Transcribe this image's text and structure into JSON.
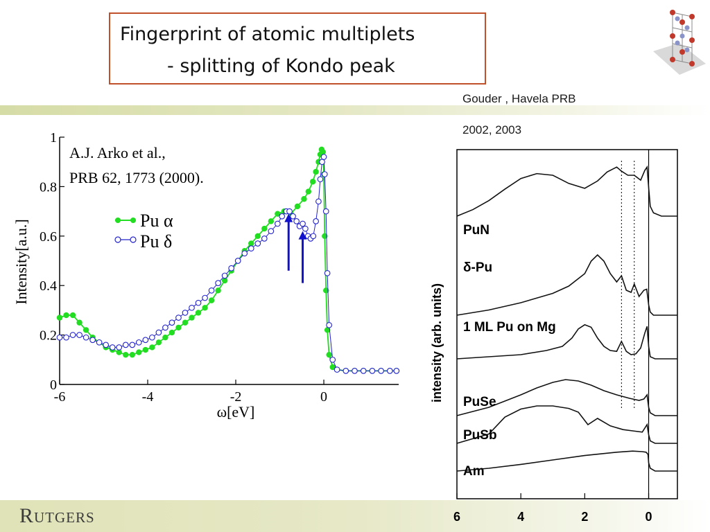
{
  "title": {
    "line1": "Fingerprint of atomic multiplets",
    "line2": "- splitting of Kondo peak"
  },
  "reference": {
    "line1": "Gouder , Havela PRB",
    "line2": "2002, 2003"
  },
  "footer": {
    "logo": "Rutgers"
  },
  "colors": {
    "title_border": "#c0502a",
    "pu_alpha": "#22dd22",
    "pu_delta": "#2222cc",
    "arrows": "#1111cc"
  },
  "chart_data": [
    {
      "type": "scatter",
      "xlabel": "ω[eV]",
      "ylabel": "Intensity[a.u.]",
      "xlim": [
        -6,
        1.7
      ],
      "ylim": [
        0,
        1
      ],
      "xticks": [
        "-6",
        "-4",
        "-2",
        "0"
      ],
      "yticks": [
        "0",
        "0.2",
        "0.4",
        "0.6",
        "0.8",
        "1"
      ],
      "annotation": [
        "A.J. Arko et al.,",
        "PRB 62, 1773 (2000)."
      ],
      "legend": {
        "alpha_label": "Pu α",
        "delta_label": "Pu δ",
        "position": "left"
      },
      "arrows": [
        {
          "x": -0.8,
          "y_tail": 0.46,
          "y_head": 0.69
        },
        {
          "x": -0.48,
          "y_tail": 0.41,
          "y_head": 0.62
        }
      ],
      "series": [
        {
          "name": "Pu α",
          "marker": "filled-circle",
          "x": [
            -6.0,
            -5.85,
            -5.7,
            -5.55,
            -5.4,
            -5.25,
            -5.1,
            -4.95,
            -4.8,
            -4.65,
            -4.5,
            -4.35,
            -4.2,
            -4.05,
            -3.9,
            -3.75,
            -3.6,
            -3.45,
            -3.3,
            -3.15,
            -3.0,
            -2.85,
            -2.7,
            -2.55,
            -2.4,
            -2.25,
            -2.1,
            -1.95,
            -1.8,
            -1.65,
            -1.5,
            -1.35,
            -1.2,
            -1.05,
            -0.9,
            -0.75,
            -0.6,
            -0.45,
            -0.35,
            -0.25,
            -0.18,
            -0.12,
            -0.08,
            -0.05,
            -0.02,
            0.0,
            0.02,
            0.05,
            0.08,
            0.12,
            0.2,
            0.3,
            0.5,
            0.7,
            0.9,
            1.1,
            1.3,
            1.5,
            1.65
          ],
          "y": [
            0.27,
            0.28,
            0.28,
            0.25,
            0.22,
            0.19,
            0.17,
            0.15,
            0.14,
            0.13,
            0.12,
            0.12,
            0.13,
            0.14,
            0.15,
            0.17,
            0.19,
            0.21,
            0.23,
            0.25,
            0.27,
            0.29,
            0.31,
            0.34,
            0.38,
            0.42,
            0.46,
            0.5,
            0.54,
            0.57,
            0.6,
            0.63,
            0.66,
            0.69,
            0.7,
            0.69,
            0.72,
            0.75,
            0.78,
            0.82,
            0.86,
            0.9,
            0.93,
            0.95,
            0.94,
            0.85,
            0.6,
            0.38,
            0.22,
            0.12,
            0.07,
            0.06,
            0.055,
            0.055,
            0.055,
            0.055,
            0.055,
            0.055,
            0.055
          ]
        },
        {
          "name": "Pu δ",
          "marker": "open-circle",
          "x": [
            -6.0,
            -5.85,
            -5.7,
            -5.55,
            -5.4,
            -5.25,
            -5.1,
            -4.95,
            -4.8,
            -4.65,
            -4.5,
            -4.35,
            -4.2,
            -4.05,
            -3.9,
            -3.75,
            -3.6,
            -3.45,
            -3.3,
            -3.15,
            -3.0,
            -2.85,
            -2.7,
            -2.55,
            -2.4,
            -2.25,
            -2.1,
            -1.95,
            -1.8,
            -1.65,
            -1.5,
            -1.35,
            -1.2,
            -1.05,
            -0.95,
            -0.85,
            -0.78,
            -0.7,
            -0.62,
            -0.55,
            -0.48,
            -0.42,
            -0.36,
            -0.3,
            -0.24,
            -0.18,
            -0.12,
            -0.08,
            -0.04,
            0.0,
            0.02,
            0.05,
            0.08,
            0.12,
            0.2,
            0.3,
            0.5,
            0.7,
            0.9,
            1.1,
            1.3,
            1.5,
            1.65
          ],
          "y": [
            0.19,
            0.19,
            0.2,
            0.2,
            0.19,
            0.18,
            0.17,
            0.16,
            0.15,
            0.15,
            0.16,
            0.16,
            0.17,
            0.18,
            0.19,
            0.21,
            0.23,
            0.25,
            0.27,
            0.29,
            0.31,
            0.33,
            0.35,
            0.38,
            0.41,
            0.44,
            0.47,
            0.5,
            0.53,
            0.55,
            0.57,
            0.59,
            0.62,
            0.65,
            0.68,
            0.7,
            0.7,
            0.68,
            0.66,
            0.64,
            0.65,
            0.63,
            0.6,
            0.59,
            0.6,
            0.66,
            0.74,
            0.83,
            0.9,
            0.92,
            0.85,
            0.7,
            0.45,
            0.24,
            0.1,
            0.06,
            0.055,
            0.055,
            0.055,
            0.055,
            0.055,
            0.055,
            0.055
          ]
        }
      ]
    },
    {
      "type": "line",
      "ylabel": "intensity (arb. units)",
      "xlim": [
        6,
        -0.9
      ],
      "xticks": [
        "6",
        "4",
        "2",
        "0"
      ],
      "markers": [
        {
          "kind": "dotted-line",
          "x": 0.85
        },
        {
          "kind": "dotted-line",
          "x": 0.45
        },
        {
          "kind": "solid-line",
          "x": 0.0
        }
      ],
      "series": [
        {
          "name": "PuN",
          "x": [
            6.0,
            5.5,
            5.0,
            4.5,
            4.0,
            3.5,
            3.0,
            2.5,
            2.0,
            1.6,
            1.3,
            1.0,
            0.85,
            0.65,
            0.45,
            0.25,
            0.12,
            0.05,
            0.0,
            -0.05,
            -0.15,
            -0.4,
            -0.9
          ],
          "y": [
            0.0,
            0.08,
            0.19,
            0.33,
            0.46,
            0.52,
            0.5,
            0.4,
            0.34,
            0.43,
            0.54,
            0.6,
            0.55,
            0.5,
            0.5,
            0.44,
            0.56,
            0.6,
            0.35,
            0.12,
            0.04,
            0.0,
            0.0
          ]
        },
        {
          "name": "δ-Pu",
          "x": [
            6.0,
            5.0,
            4.0,
            3.0,
            2.5,
            2.0,
            1.8,
            1.6,
            1.4,
            1.2,
            1.0,
            0.85,
            0.7,
            0.55,
            0.45,
            0.3,
            0.15,
            0.06,
            0.0,
            -0.05,
            -0.15,
            -0.4,
            -0.9
          ],
          "y": [
            0.0,
            0.05,
            0.12,
            0.21,
            0.28,
            0.4,
            0.52,
            0.58,
            0.52,
            0.4,
            0.32,
            0.38,
            0.24,
            0.22,
            0.3,
            0.18,
            0.24,
            0.25,
            0.1,
            0.03,
            0.0,
            0.0,
            0.0
          ]
        },
        {
          "name": "1 ML Pu on Mg",
          "x": [
            6.0,
            5.0,
            4.0,
            3.2,
            2.7,
            2.4,
            2.2,
            2.0,
            1.8,
            1.6,
            1.4,
            1.2,
            1.0,
            0.85,
            0.7,
            0.55,
            0.4,
            0.25,
            0.12,
            0.05,
            0.0,
            -0.05,
            -0.2,
            -0.5,
            -0.9
          ],
          "y": [
            0.0,
            0.05,
            0.1,
            0.2,
            0.3,
            0.5,
            0.72,
            0.82,
            0.76,
            0.5,
            0.3,
            0.2,
            0.18,
            0.42,
            0.18,
            0.1,
            0.12,
            0.26,
            0.62,
            0.78,
            0.3,
            0.05,
            0.0,
            0.0,
            0.0
          ]
        },
        {
          "name": "PuSe",
          "x": [
            6.0,
            5.0,
            4.0,
            3.5,
            3.0,
            2.6,
            2.2,
            1.8,
            1.4,
            1.0,
            0.6,
            0.3,
            0.15,
            0.05,
            0.0,
            -0.05,
            -0.2,
            -0.5,
            -0.9
          ],
          "y": [
            0.0,
            0.12,
            0.3,
            0.4,
            0.48,
            0.52,
            0.5,
            0.44,
            0.36,
            0.3,
            0.25,
            0.22,
            0.24,
            0.3,
            0.12,
            0.04,
            0.0,
            0.0,
            0.0
          ]
        },
        {
          "name": "PuSb",
          "x": [
            6.0,
            5.0,
            4.5,
            4.0,
            3.5,
            3.0,
            2.5,
            2.2,
            1.9,
            1.6,
            1.2,
            0.8,
            0.5,
            0.2,
            0.05,
            0.0,
            -0.05,
            -0.2,
            -0.5,
            -0.9
          ],
          "y": [
            0.0,
            0.15,
            0.42,
            0.55,
            0.6,
            0.6,
            0.56,
            0.5,
            0.3,
            0.4,
            0.28,
            0.22,
            0.2,
            0.18,
            0.3,
            0.14,
            0.04,
            0.0,
            0.0,
            0.0
          ]
        },
        {
          "name": "Am",
          "x": [
            6.0,
            5.0,
            4.0,
            3.0,
            2.0,
            1.0,
            0.5,
            0.2,
            0.08,
            0.02,
            0.0,
            -0.05,
            -0.2,
            -0.5,
            -0.9
          ],
          "y": [
            0.0,
            0.05,
            0.12,
            0.2,
            0.28,
            0.34,
            0.36,
            0.35,
            0.34,
            0.3,
            0.15,
            0.05,
            0.0,
            0.0,
            0.0
          ]
        }
      ]
    }
  ]
}
